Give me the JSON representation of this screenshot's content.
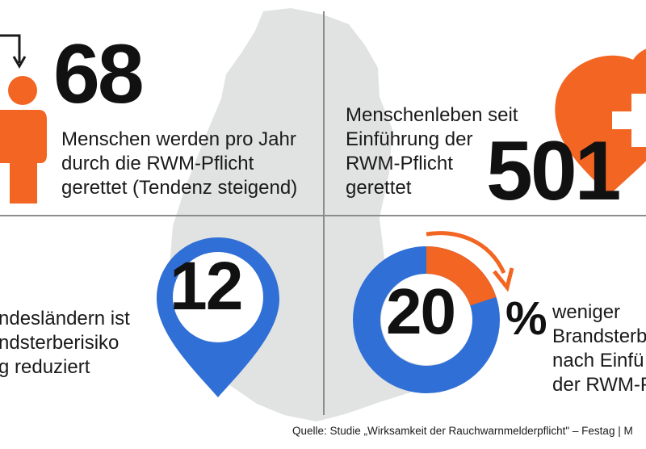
{
  "top_left": {
    "number": "68",
    "lines": [
      "Menschen werden pro Jahr",
      "durch die RWM-Pflicht",
      "gerettet (Tendenz steigend)"
    ]
  },
  "top_right": {
    "lines": [
      "Menschenleben seit",
      "Einführung der",
      "RWM-Pflicht",
      "gerettet"
    ],
    "number": "501"
  },
  "bottom_left": {
    "number": "12",
    "lines": [
      "ndesländern ist",
      "ndsterberisiko",
      "g reduziert"
    ]
  },
  "bottom_right": {
    "number": "20",
    "percent_sign": "%",
    "percent_value": 20,
    "lines": [
      "weniger",
      "Brandsterb",
      "nach Einfü",
      "der RWM-P"
    ]
  },
  "source": "Quelle: Studie „Wirksamkeit der Rauchwarnmelderpflicht\" – Festag | M",
  "icons": [
    "map-icon",
    "person-icon",
    "arrow-down-icon",
    "heart-cross-icon",
    "location-pin-icon",
    "donut-progress-icon",
    "circular-arrow-icon"
  ],
  "colors": {
    "orange": "#F26522",
    "blue": "#2F6FD6",
    "map_gray": "#E1E3E2",
    "divider": "#8C8C8C",
    "text": "#1A1A1A"
  }
}
